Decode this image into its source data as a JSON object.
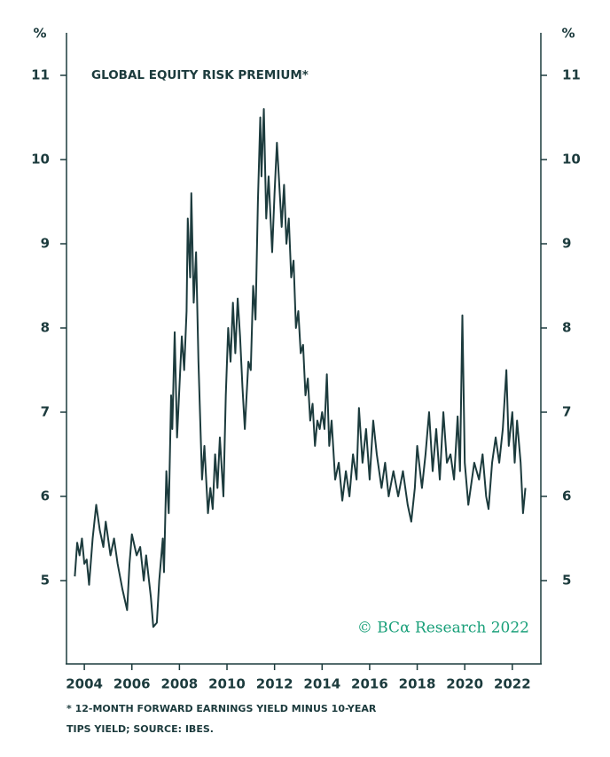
{
  "chart_data": {
    "type": "line",
    "title": "GLOBAL EQUITY RISK PREMIUM*",
    "ylabel": "%",
    "y2label": "%",
    "watermark": "© BCα Research 2022",
    "footnote": [
      "*  12-MONTH FORWARD EARNINGS YIELD MINUS 10-YEAR",
      "TIPS YIELD; SOURCE: IBES."
    ],
    "xlim": [
      2003.25,
      2023.2
    ],
    "xticks": [
      2004,
      2006,
      2008,
      2010,
      2012,
      2014,
      2016,
      2018,
      2020,
      2022
    ],
    "ylim": [
      4,
      11.5
    ],
    "yticks": [
      5,
      6,
      7,
      8,
      9,
      10,
      11
    ],
    "y2lim": [
      4,
      11.5
    ],
    "y2ticks": [
      5,
      6,
      7,
      8,
      9,
      10,
      11
    ],
    "x": [
      2003.6,
      2003.7,
      2003.8,
      2003.9,
      2004.0,
      2004.1,
      2004.2,
      2004.35,
      2004.5,
      2004.65,
      2004.8,
      2004.9,
      2005.1,
      2005.25,
      2005.4,
      2005.6,
      2005.8,
      2005.9,
      2006.0,
      2006.2,
      2006.35,
      2006.5,
      2006.6,
      2006.8,
      2006.9,
      2007.05,
      2007.15,
      2007.3,
      2007.35,
      2007.45,
      2007.55,
      2007.65,
      2007.7,
      2007.8,
      2007.9,
      2008.0,
      2008.1,
      2008.2,
      2008.3,
      2008.35,
      2008.45,
      2008.5,
      2008.6,
      2008.7,
      2008.8,
      2008.95,
      2009.05,
      2009.2,
      2009.3,
      2009.4,
      2009.5,
      2009.6,
      2009.7,
      2009.85,
      2009.95,
      2010.05,
      2010.15,
      2010.25,
      2010.35,
      2010.45,
      2010.55,
      2010.65,
      2010.75,
      2010.9,
      2011.0,
      2011.1,
      2011.2,
      2011.3,
      2011.4,
      2011.45,
      2011.55,
      2011.65,
      2011.75,
      2011.9,
      2012.0,
      2012.1,
      2012.2,
      2012.3,
      2012.4,
      2012.5,
      2012.6,
      2012.7,
      2012.8,
      2012.9,
      2013.0,
      2013.1,
      2013.2,
      2013.3,
      2013.4,
      2013.5,
      2013.6,
      2013.7,
      2013.8,
      2013.9,
      2014.0,
      2014.1,
      2014.2,
      2014.3,
      2014.4,
      2014.55,
      2014.7,
      2014.85,
      2015.0,
      2015.15,
      2015.3,
      2015.45,
      2015.55,
      2015.7,
      2015.85,
      2016.0,
      2016.15,
      2016.3,
      2016.5,
      2016.65,
      2016.8,
      2017.0,
      2017.2,
      2017.4,
      2017.6,
      2017.75,
      2017.9,
      2018.0,
      2018.2,
      2018.35,
      2018.5,
      2018.65,
      2018.8,
      2018.95,
      2019.1,
      2019.25,
      2019.4,
      2019.55,
      2019.7,
      2019.8,
      2019.9,
      2020.0,
      2020.15,
      2020.4,
      2020.6,
      2020.75,
      2020.9,
      2021.0,
      2021.15,
      2021.3,
      2021.45,
      2021.6,
      2021.75,
      2021.85,
      2022.0,
      2022.1,
      2022.2,
      2022.35,
      2022.45,
      2022.55
    ],
    "series": [
      {
        "color": "#1c3b3d",
        "values": [
          5.05,
          5.45,
          5.3,
          5.5,
          5.2,
          5.25,
          4.95,
          5.5,
          5.9,
          5.6,
          5.4,
          5.7,
          5.3,
          5.5,
          5.2,
          4.9,
          4.65,
          5.2,
          5.55,
          5.3,
          5.4,
          5.0,
          5.3,
          4.8,
          4.45,
          4.5,
          5.0,
          5.5,
          5.1,
          6.3,
          5.8,
          7.2,
          6.8,
          7.95,
          6.7,
          7.3,
          7.9,
          7.5,
          8.2,
          9.3,
          8.6,
          9.6,
          8.3,
          8.9,
          7.6,
          6.2,
          6.6,
          5.8,
          6.1,
          5.85,
          6.5,
          6.1,
          6.7,
          6.0,
          7.2,
          8.0,
          7.6,
          8.3,
          7.7,
          8.35,
          7.9,
          7.3,
          6.8,
          7.6,
          7.5,
          8.5,
          8.1,
          9.5,
          10.5,
          9.8,
          10.6,
          9.3,
          9.8,
          8.9,
          9.6,
          10.2,
          9.7,
          9.2,
          9.7,
          9.0,
          9.3,
          8.6,
          8.8,
          8.0,
          8.2,
          7.7,
          7.8,
          7.2,
          7.4,
          6.9,
          7.1,
          6.6,
          6.9,
          6.8,
          7.0,
          6.8,
          7.45,
          6.6,
          6.9,
          6.2,
          6.4,
          5.95,
          6.3,
          6.0,
          6.5,
          6.2,
          7.05,
          6.4,
          6.8,
          6.2,
          6.9,
          6.5,
          6.1,
          6.4,
          6.0,
          6.3,
          6.0,
          6.3,
          5.9,
          5.7,
          6.1,
          6.6,
          6.1,
          6.5,
          7.0,
          6.3,
          6.8,
          6.2,
          7.0,
          6.4,
          6.5,
          6.2,
          6.95,
          6.3,
          8.15,
          6.4,
          5.9,
          6.4,
          6.2,
          6.5,
          6.0,
          5.85,
          6.4,
          6.7,
          6.4,
          6.8,
          7.5,
          6.6,
          7.0,
          6.4,
          6.9,
          6.4,
          5.8,
          6.1
        ]
      }
    ]
  }
}
